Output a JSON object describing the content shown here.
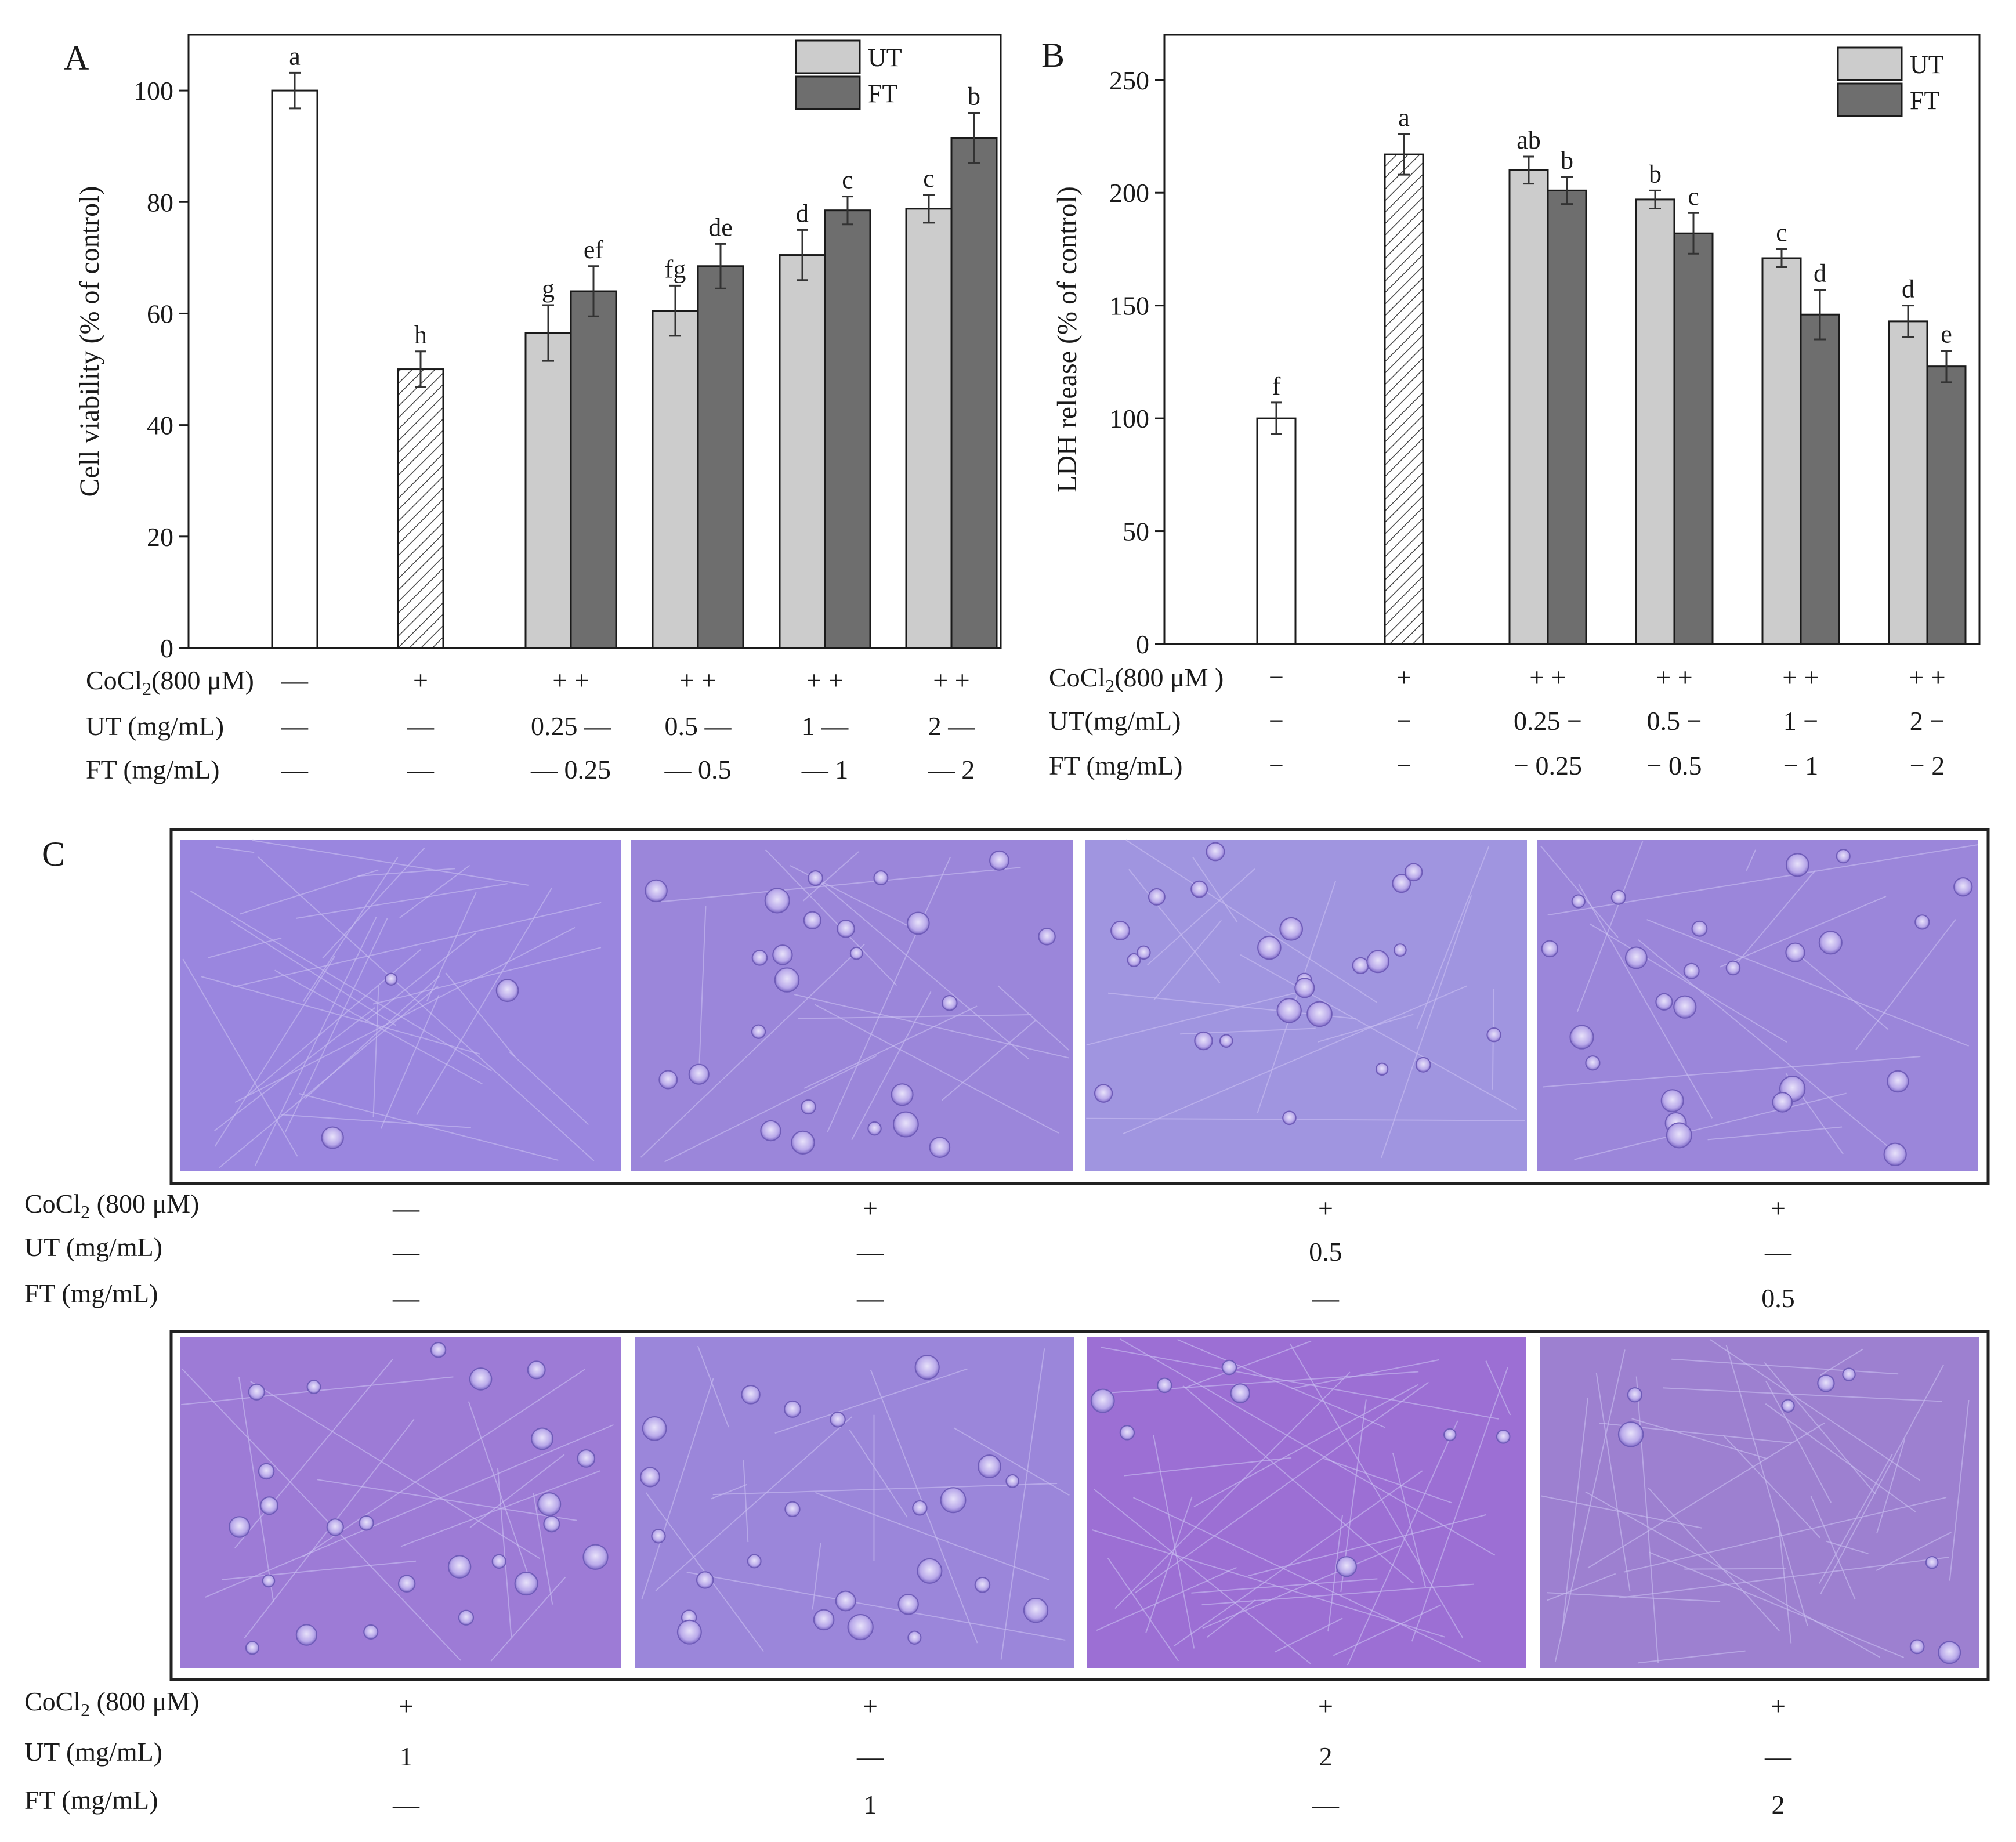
{
  "colors": {
    "control": "#ffffff",
    "cocl2": "#ffffff",
    "ut": "#cccccc",
    "ft": "#6e6e6e",
    "cell_bg_light": "#9a86df",
    "cell_bg_mid": "#9b86da",
    "cell_bg_dark": "#9d7bd6"
  },
  "legend": {
    "ut": "UT",
    "ft": "FT"
  },
  "chart_data": [
    {
      "panel": "A",
      "type": "bar",
      "title": "",
      "ylabel": "Cell viability (% of control)",
      "ylim": [
        0,
        110
      ],
      "yticks": [
        0,
        20,
        40,
        60,
        80,
        100
      ],
      "groups": [
        {
          "cocl2": "—",
          "ut": "—",
          "ft": "—",
          "bars": [
            {
              "series": "control",
              "value": 100,
              "err": 3.2,
              "sig": "a"
            }
          ]
        },
        {
          "cocl2": "+",
          "ut": "—",
          "ft": "—",
          "bars": [
            {
              "series": "cocl2",
              "value": 50,
              "err": 3.2,
              "sig": "h"
            }
          ]
        },
        {
          "cocl2": "+ +",
          "ut": "0.25 —",
          "ft": "— 0.25",
          "bars": [
            {
              "series": "UT",
              "value": 56.5,
              "err": 5,
              "sig": "g"
            },
            {
              "series": "FT",
              "value": 64,
              "err": 4.5,
              "sig": "ef"
            }
          ]
        },
        {
          "cocl2": "+ +",
          "ut": "0.5 —",
          "ft": "— 0.5",
          "bars": [
            {
              "series": "UT",
              "value": 60.5,
              "err": 4.5,
              "sig": "fg"
            },
            {
              "series": "FT",
              "value": 68.5,
              "err": 4,
              "sig": "de"
            }
          ]
        },
        {
          "cocl2": "+ +",
          "ut": "1 —",
          "ft": "— 1",
          "bars": [
            {
              "series": "UT",
              "value": 70.5,
              "err": 4.5,
              "sig": "d"
            },
            {
              "series": "FT",
              "value": 78.5,
              "err": 2.5,
              "sig": "c"
            }
          ]
        },
        {
          "cocl2": "+ +",
          "ut": "2 —",
          "ft": "— 2",
          "bars": [
            {
              "series": "UT",
              "value": 78.8,
              "err": 2.5,
              "sig": "c"
            },
            {
              "series": "FT",
              "value": 91.5,
              "err": 4.5,
              "sig": "b"
            }
          ]
        }
      ],
      "row_labels": {
        "cocl2": "CoCl",
        "cocl2_sub": "2",
        "cocl2_tail": "(800 μM)",
        "ut": "UT (mg/mL)",
        "ft": "FT (mg/mL)"
      }
    },
    {
      "panel": "B",
      "type": "bar",
      "title": "",
      "ylabel": "LDH release (% of control)",
      "ylim": [
        0,
        270
      ],
      "yticks": [
        0,
        50,
        100,
        150,
        200,
        250
      ],
      "groups": [
        {
          "cocl2": "−",
          "ut": "−",
          "ft": "−",
          "bars": [
            {
              "series": "control",
              "value": 100,
              "err": 7,
              "sig": "f"
            }
          ]
        },
        {
          "cocl2": "+",
          "ut": "−",
          "ft": "−",
          "bars": [
            {
              "series": "cocl2",
              "value": 217,
              "err": 9,
              "sig": "a"
            }
          ]
        },
        {
          "cocl2": "+ +",
          "ut": "0.25 −",
          "ft": "− 0.25",
          "bars": [
            {
              "series": "UT",
              "value": 210,
              "err": 6,
              "sig": "ab"
            },
            {
              "series": "FT",
              "value": 201,
              "err": 6,
              "sig": "b"
            }
          ]
        },
        {
          "cocl2": "+ +",
          "ut": "0.5 −",
          "ft": "− 0.5",
          "bars": [
            {
              "series": "UT",
              "value": 197,
              "err": 4,
              "sig": "b"
            },
            {
              "series": "FT",
              "value": 182,
              "err": 9,
              "sig": "c"
            }
          ]
        },
        {
          "cocl2": "+ +",
          "ut": "1 −",
          "ft": "− 1",
          "bars": [
            {
              "series": "UT",
              "value": 171,
              "err": 4,
              "sig": "c"
            },
            {
              "series": "FT",
              "value": 146,
              "err": 11,
              "sig": "d"
            }
          ]
        },
        {
          "cocl2": "+ +",
          "ut": "2 −",
          "ft": "− 2",
          "bars": [
            {
              "series": "UT",
              "value": 143,
              "err": 7,
              "sig": "d"
            },
            {
              "series": "FT",
              "value": 123,
              "err": 7,
              "sig": "e"
            }
          ]
        }
      ],
      "row_labels": {
        "cocl2": "CoCl",
        "cocl2_sub": "2",
        "cocl2_tail": "(800 μM )",
        "ut": "UT(mg/mL)",
        "ft": "FT (mg/mL)"
      }
    }
  ],
  "panel_c": {
    "letter": "C",
    "row_labels": {
      "cocl2": "CoCl",
      "cocl2_sub": "2",
      "cocl2_tail": " (800 μM)",
      "ut": "UT (mg/mL)",
      "ft": "FT (mg/mL)"
    },
    "top_row": [
      {
        "cocl2": "—",
        "ut": "—",
        "ft": "—"
      },
      {
        "cocl2": "+",
        "ut": "—",
        "ft": "—"
      },
      {
        "cocl2": "+",
        "ut": "0.5",
        "ft": "—"
      },
      {
        "cocl2": "+",
        "ut": "—",
        "ft": "0.5"
      }
    ],
    "bottom_row": [
      {
        "cocl2": "+",
        "ut": "1",
        "ft": "—"
      },
      {
        "cocl2": "+",
        "ut": "—",
        "ft": "1"
      },
      {
        "cocl2": "+",
        "ut": "2",
        "ft": "—"
      },
      {
        "cocl2": "+",
        "ut": "—",
        "ft": "2"
      }
    ]
  }
}
